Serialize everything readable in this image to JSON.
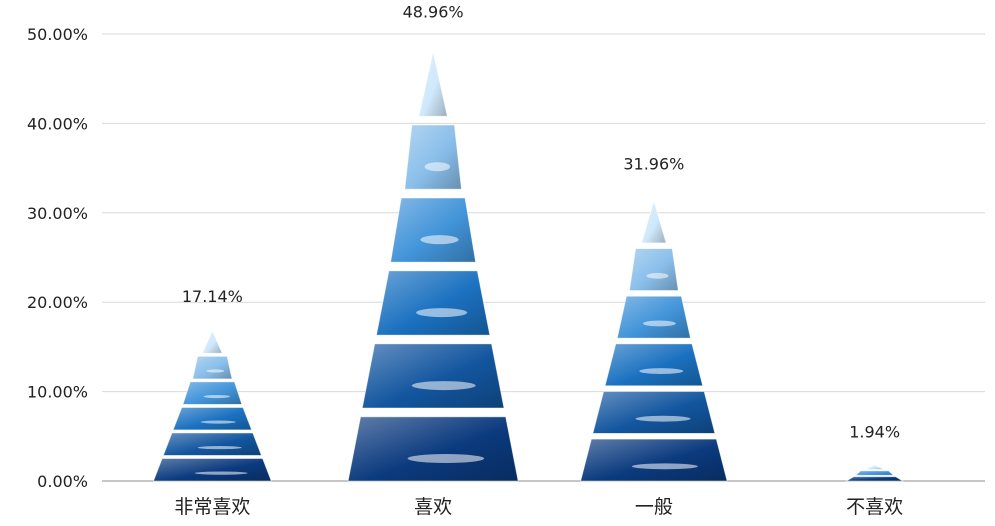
{
  "chart_data": {
    "type": "bar",
    "categories": [
      "非常喜欢",
      "喜欢",
      "一般",
      "不喜欢"
    ],
    "values": [
      17.14,
      48.96,
      31.96,
      1.94
    ],
    "data_labels": [
      "17.14%",
      "48.96%",
      "31.96%",
      "1.94%"
    ],
    "ylim": [
      0,
      50
    ],
    "yticks": [
      0,
      10,
      20,
      30,
      40,
      50
    ],
    "ytick_labels": [
      "0.00%",
      "10.00%",
      "20.00%",
      "30.00%",
      "40.00%",
      "50.00%"
    ],
    "grid": true,
    "legend": "none",
    "style": "stacked pyramid segments with blue gradient",
    "colors": {
      "dark": "#0b3a7e",
      "mid": "#1f7fd0",
      "light": "#cfe8fb",
      "grid": "#d9d9d9",
      "axis": "#8c8c8c",
      "text": "#222222"
    }
  }
}
